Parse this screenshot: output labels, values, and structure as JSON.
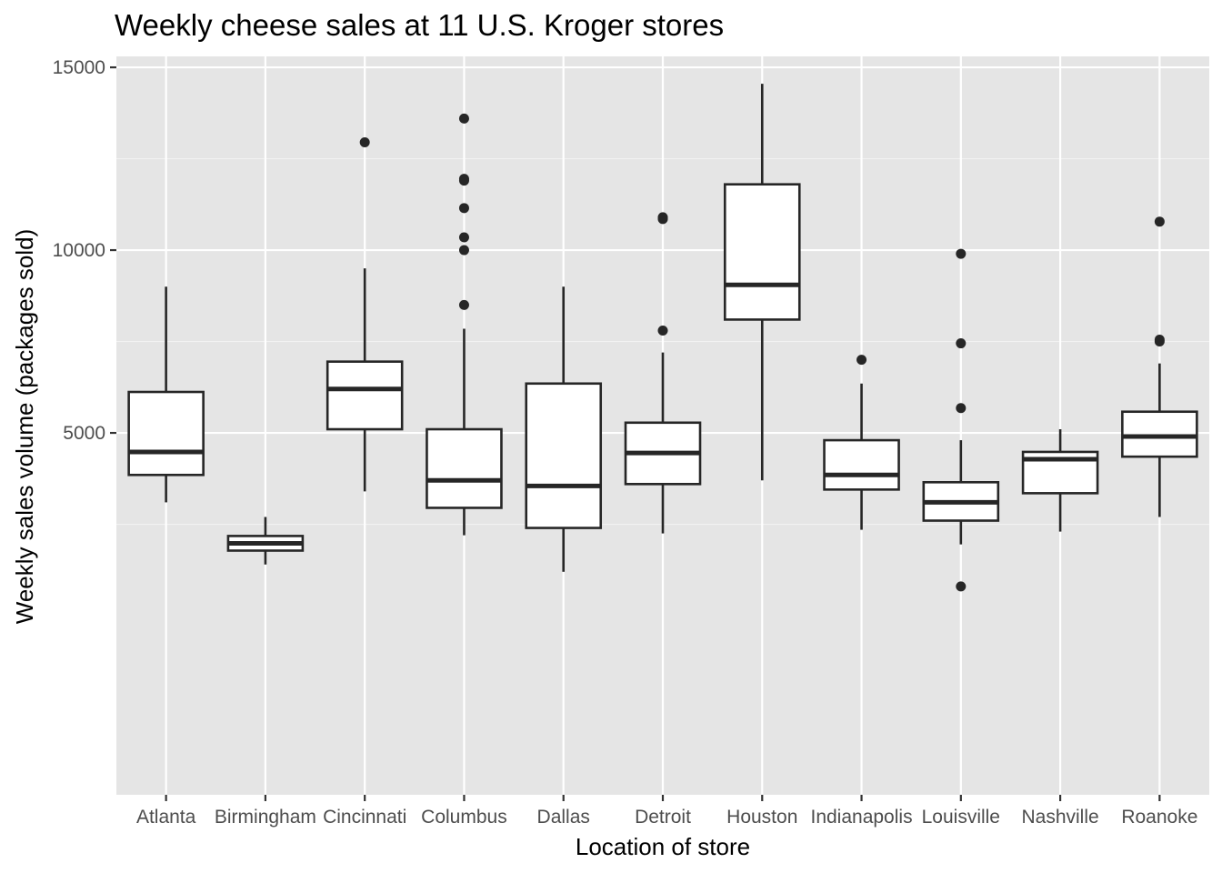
{
  "chart_data": {
    "type": "boxplot",
    "title": "Weekly cheese sales at 11 U.S. Kroger stores",
    "xlabel": "Location of store",
    "ylabel": "Weekly sales volume (packages sold)",
    "ylim": [
      -4900,
      15300
    ],
    "yticks": [
      5000,
      10000,
      15000
    ],
    "ytick_labels": [
      "5000",
      "10000",
      "15000"
    ],
    "grid": true,
    "categories": [
      "Atlanta",
      "Birmingham",
      "Cincinnati",
      "Columbus",
      "Dallas",
      "Detroit",
      "Houston",
      "Indianapolis",
      "Louisville",
      "Nashville",
      "Roanoke"
    ],
    "boxes": [
      {
        "store": "Atlanta",
        "lower_whisker": 3100,
        "q1": 3850,
        "median": 4480,
        "q3": 6120,
        "upper_whisker": 9000,
        "outliers": []
      },
      {
        "store": "Birmingham",
        "lower_whisker": 1400,
        "q1": 1780,
        "median": 1980,
        "q3": 2180,
        "upper_whisker": 2700,
        "outliers": []
      },
      {
        "store": "Cincinnati",
        "lower_whisker": 3400,
        "q1": 5100,
        "median": 6200,
        "q3": 6950,
        "upper_whisker": 9500,
        "outliers": [
          12950
        ]
      },
      {
        "store": "Columbus",
        "lower_whisker": 2200,
        "q1": 2950,
        "median": 3700,
        "q3": 5100,
        "upper_whisker": 7850,
        "outliers": [
          8500,
          10000,
          10350,
          11150,
          11900,
          11950,
          13600
        ]
      },
      {
        "store": "Dallas",
        "lower_whisker": 1200,
        "q1": 2400,
        "median": 3550,
        "q3": 6350,
        "upper_whisker": 9000,
        "outliers": []
      },
      {
        "store": "Detroit",
        "lower_whisker": 2250,
        "q1": 3600,
        "median": 4450,
        "q3": 5280,
        "upper_whisker": 7200,
        "outliers": [
          7800,
          10850,
          10900
        ]
      },
      {
        "store": "Houston",
        "lower_whisker": 3700,
        "q1": 8100,
        "median": 9050,
        "q3": 11800,
        "upper_whisker": 14550,
        "outliers": []
      },
      {
        "store": "Indianapolis",
        "lower_whisker": 2350,
        "q1": 3450,
        "median": 3850,
        "q3": 4800,
        "upper_whisker": 6350,
        "outliers": [
          7000
        ]
      },
      {
        "store": "Louisville",
        "lower_whisker": 1950,
        "q1": 2600,
        "median": 3100,
        "q3": 3650,
        "upper_whisker": 4800,
        "outliers": [
          800,
          5680,
          7450,
          9900
        ]
      },
      {
        "store": "Nashville",
        "lower_whisker": 2300,
        "q1": 3350,
        "median": 4280,
        "q3": 4480,
        "upper_whisker": 5100,
        "outliers": []
      },
      {
        "store": "Roanoke",
        "lower_whisker": 2700,
        "q1": 4350,
        "median": 4900,
        "q3": 5580,
        "upper_whisker": 6900,
        "outliers": [
          7500,
          7550,
          10780
        ]
      }
    ]
  },
  "colors": {
    "panel_background": "#e5e5e5",
    "grid_major": "#ffffff",
    "grid_minor": "#f2f2f2",
    "box_fill": "#ffffff",
    "box_line": "#262626",
    "tick_text": "#4d4d4d",
    "title_text": "#000000"
  }
}
